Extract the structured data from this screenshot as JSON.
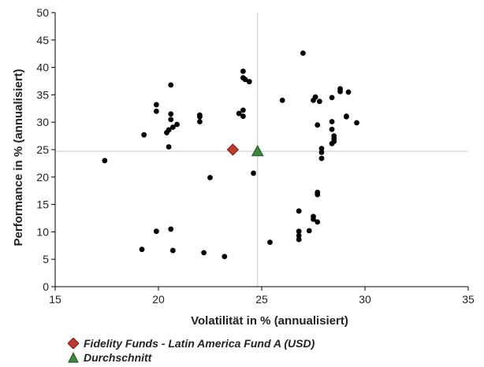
{
  "chart_data": {
    "type": "scatter",
    "xlabel": "Volatilität in % (annualisiert)",
    "ylabel": "Performance in % (annualisiert)",
    "xlim": [
      15,
      35
    ],
    "ylim": [
      0,
      50
    ],
    "xticks": [
      "15",
      "20",
      "25",
      "30",
      "35"
    ],
    "yticks": [
      "0",
      "5",
      "10",
      "15",
      "20",
      "25",
      "30",
      "35",
      "40",
      "45",
      "50"
    ],
    "grid": false,
    "legend_position": "bottom-left",
    "series": [
      {
        "name": "",
        "color": "#000000",
        "marker": "circle",
        "points": [
          [
            17.4,
            23.0
          ],
          [
            19.3,
            27.7
          ],
          [
            19.2,
            6.8
          ],
          [
            19.9,
            33.2
          ],
          [
            19.9,
            32.0
          ],
          [
            19.9,
            10.1
          ],
          [
            20.6,
            36.8
          ],
          [
            20.6,
            31.5
          ],
          [
            20.6,
            30.5
          ],
          [
            20.7,
            29.1
          ],
          [
            20.5,
            28.6
          ],
          [
            20.4,
            28.1
          ],
          [
            20.9,
            29.6
          ],
          [
            20.5,
            25.5
          ],
          [
            20.6,
            10.5
          ],
          [
            20.7,
            6.6
          ],
          [
            22.0,
            31.3
          ],
          [
            22.0,
            31.0
          ],
          [
            22.0,
            30.1
          ],
          [
            22.5,
            19.9
          ],
          [
            22.2,
            6.2
          ],
          [
            23.2,
            5.5
          ],
          [
            24.1,
            39.3
          ],
          [
            24.1,
            38.1
          ],
          [
            24.2,
            37.8
          ],
          [
            24.4,
            37.4
          ],
          [
            23.9,
            31.6
          ],
          [
            24.1,
            32.2
          ],
          [
            24.1,
            31.1
          ],
          [
            24.6,
            20.7
          ],
          [
            26.0,
            34.0
          ],
          [
            25.4,
            8.1
          ],
          [
            27.0,
            42.6
          ],
          [
            27.5,
            34.0
          ],
          [
            27.6,
            34.6
          ],
          [
            27.8,
            33.8
          ],
          [
            27.7,
            29.5
          ],
          [
            28.4,
            34.5
          ],
          [
            28.8,
            35.6
          ],
          [
            28.8,
            36.1
          ],
          [
            29.2,
            35.5
          ],
          [
            29.1,
            31.1
          ],
          [
            29.1,
            31.0
          ],
          [
            29.6,
            29.9
          ],
          [
            28.4,
            30.1
          ],
          [
            28.4,
            28.7
          ],
          [
            28.5,
            27.5
          ],
          [
            28.5,
            27.0
          ],
          [
            28.5,
            26.5
          ],
          [
            28.4,
            26.1
          ],
          [
            27.9,
            25.2
          ],
          [
            27.9,
            24.5
          ],
          [
            27.9,
            23.4
          ],
          [
            26.8,
            13.8
          ],
          [
            27.7,
            17.2
          ],
          [
            27.7,
            16.8
          ],
          [
            27.5,
            12.8
          ],
          [
            27.5,
            12.3
          ],
          [
            27.7,
            11.8
          ],
          [
            26.8,
            10.1
          ],
          [
            27.3,
            10.2
          ],
          [
            26.8,
            9.3
          ],
          [
            26.8,
            8.6
          ]
        ]
      },
      {
        "name": "Fidelity Funds - Latin America Fund A (USD)",
        "color": "#c0392b",
        "marker": "diamond",
        "points": [
          [
            23.6,
            25.0
          ]
        ]
      },
      {
        "name": "Durchschnitt",
        "color": "#3c8a3c",
        "marker": "triangle",
        "points": [
          [
            24.8,
            24.7
          ]
        ]
      }
    ],
    "reference_lines": {
      "x": 24.8,
      "y": 24.7,
      "color": "#c8c8c8"
    }
  }
}
